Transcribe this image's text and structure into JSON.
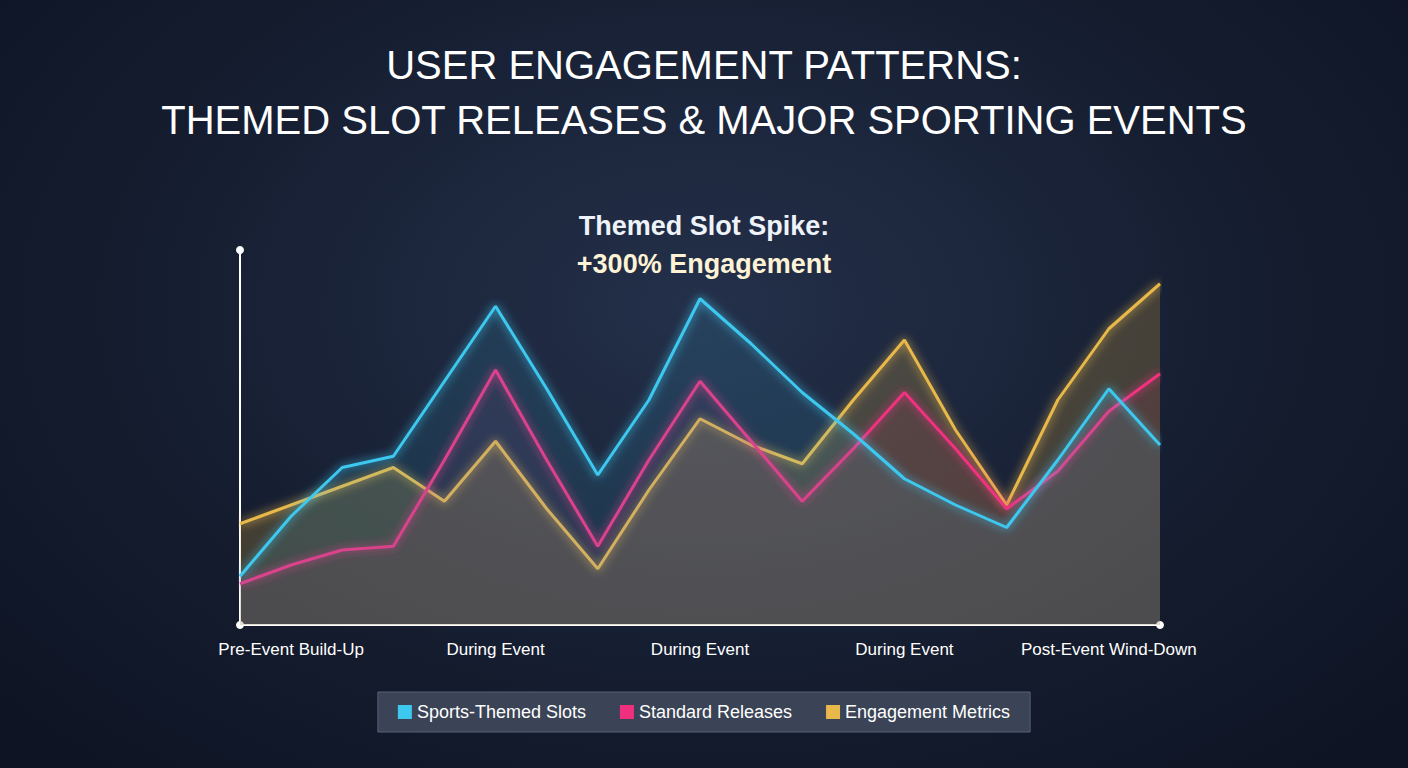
{
  "chart_data": {
    "type": "line",
    "title": "USER ENGAGEMENT PATTERNS:",
    "subtitle": "THEMED SLOT RELEASES & MAJOR SPORTING EVENTS",
    "annotations": [
      "Themed Slot Spike:",
      "+300% Engagement"
    ],
    "categories": [
      null,
      "Pre-Event Build-Up",
      null,
      null,
      null,
      "During Event",
      null,
      null,
      null,
      "During Event",
      null,
      null,
      null,
      "During Event",
      null,
      null,
      null,
      "Post-Event Wind-Down",
      null
    ],
    "series": [
      {
        "name": "Sports-Themed Slots",
        "color": "#3ec8f0",
        "values": [
          13,
          29,
          42,
          45,
          65,
          85,
          63,
          40,
          60,
          87,
          75,
          62,
          51,
          39,
          32,
          26,
          44,
          63,
          48
        ]
      },
      {
        "name": "Standard Releases",
        "color": "#f0307f",
        "values": [
          11,
          16,
          20,
          21,
          44,
          68,
          44,
          21,
          44,
          65,
          49,
          33,
          47,
          62,
          47,
          31,
          41,
          57,
          67
        ]
      },
      {
        "name": "Engagement Metrics",
        "color": "#e8b84a",
        "values": [
          27,
          32,
          37,
          42,
          33,
          49,
          31,
          15,
          36,
          55,
          48,
          43,
          60,
          76,
          52,
          32,
          60,
          79,
          91
        ]
      }
    ],
    "ylim": [
      0,
      100
    ],
    "tick_labels": "x",
    "legend": "bottom",
    "grid": false
  }
}
